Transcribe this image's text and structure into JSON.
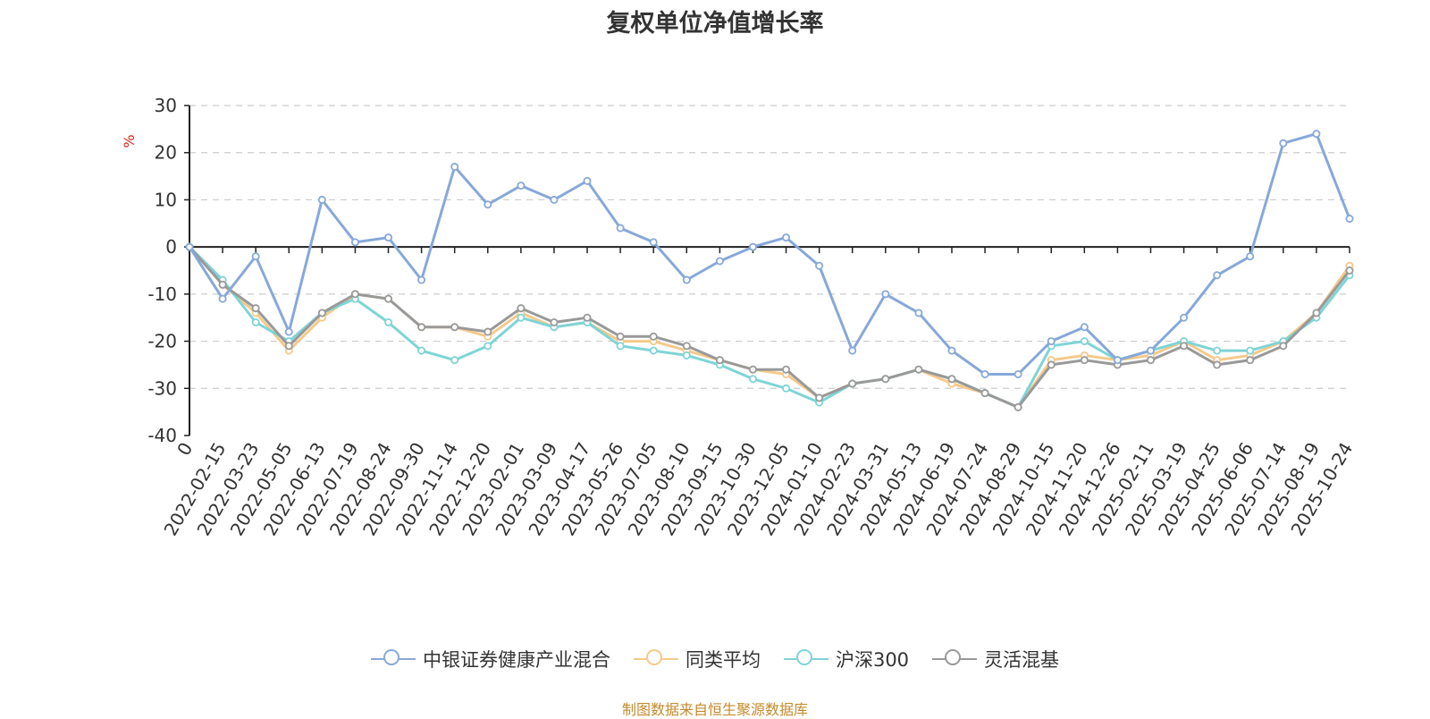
{
  "chart_data": {
    "type": "line",
    "title": "复权单位净值增长率",
    "ylabel": "%",
    "ylim": [
      -40,
      30
    ],
    "yticks": [
      30,
      20,
      10,
      0,
      -10,
      -20,
      -30,
      -40
    ],
    "xticks": [
      "0",
      "2022-02-15",
      "2022-03-23",
      "2022-05-05",
      "2022-06-13",
      "2022-07-19",
      "2022-08-24",
      "2022-09-30",
      "2022-11-14",
      "2022-12-20",
      "2023-02-01",
      "2023-03-09",
      "2023-04-17",
      "2023-05-26",
      "2023-07-05",
      "2023-08-10",
      "2023-09-15",
      "2023-10-30",
      "2023-12-05",
      "2024-01-10",
      "2024-02-23",
      "2024-03-31",
      "2024-05-13",
      "2024-06-19",
      "2024-07-24",
      "2024-08-29",
      "2024-10-15",
      "2024-11-20",
      "2024-12-26",
      "2025-02-11",
      "2025-03-19",
      "2025-04-25",
      "2025-06-06",
      "2025-07-14",
      "2025-08-19",
      "2025-10-24"
    ],
    "grid": true,
    "legend_position": "bottom",
    "x": [
      "0",
      "2022-02-15",
      "2022-03-23",
      "2022-05-05",
      "2022-06-13",
      "2022-07-19",
      "2022-08-24",
      "2022-09-30",
      "2022-11-14",
      "2022-12-20",
      "2023-02-01",
      "2023-03-09",
      "2023-04-17",
      "2023-05-26",
      "2023-07-05",
      "2023-08-10",
      "2023-09-15",
      "2023-10-30",
      "2023-12-05",
      "2024-01-10",
      "2024-02-23",
      "2024-03-31",
      "2024-05-13",
      "2024-06-19",
      "2024-07-24",
      "2024-08-29",
      "2024-10-15",
      "2024-11-20",
      "2024-12-26",
      "2025-02-11",
      "2025-03-19",
      "2025-04-25",
      "2025-06-06",
      "2025-07-14",
      "2025-08-19",
      "2025-10-24"
    ],
    "series": [
      {
        "name": "中银证券健康产业混合",
        "color": "#87a8d8",
        "values": [
          0,
          -11,
          -2,
          -18,
          10,
          1,
          2,
          -7,
          17,
          9,
          13,
          10,
          14,
          4,
          1,
          -7,
          -3,
          0,
          2,
          -4,
          -22,
          -10,
          -14,
          -22,
          -27,
          -27,
          -20,
          -17,
          -24,
          -22,
          -15,
          -6,
          -2,
          22,
          24,
          6
        ]
      },
      {
        "name": "同类平均",
        "color": "#f5c98a",
        "values": [
          0,
          -8,
          -14,
          -22,
          -15,
          -10,
          -11,
          -17,
          -17,
          -19,
          -14,
          -17,
          -16,
          -20,
          -20,
          -22,
          -24,
          -26,
          -27,
          -32,
          -29,
          -28,
          -26,
          -29,
          -31,
          -34,
          -24,
          -23,
          -24,
          -23,
          -20,
          -24,
          -23,
          -20,
          -14,
          -4
        ]
      },
      {
        "name": "沪深300",
        "color": "#7fd4d6",
        "values": [
          0,
          -7,
          -16,
          -20,
          -14,
          -11,
          -16,
          -22,
          -24,
          -21,
          -15,
          -17,
          -16,
          -21,
          -22,
          -23,
          -25,
          -28,
          -30,
          -33,
          -29,
          -28,
          -26,
          -28,
          -31,
          -34,
          -21,
          -20,
          -24,
          -22,
          -20,
          -22,
          -22,
          -20,
          -15,
          -6
        ]
      },
      {
        "name": "灵活混基",
        "color": "#999999",
        "values": [
          0,
          -8,
          -13,
          -21,
          -14,
          -10,
          -11,
          -17,
          -17,
          -18,
          -13,
          -16,
          -15,
          -19,
          -19,
          -21,
          -24,
          -26,
          -26,
          -32,
          -29,
          -28,
          -26,
          -28,
          -31,
          -34,
          -25,
          -24,
          -25,
          -24,
          -21,
          -25,
          -24,
          -21,
          -14,
          -5
        ]
      }
    ]
  },
  "source_text": "制图数据来自恒生聚源数据库"
}
